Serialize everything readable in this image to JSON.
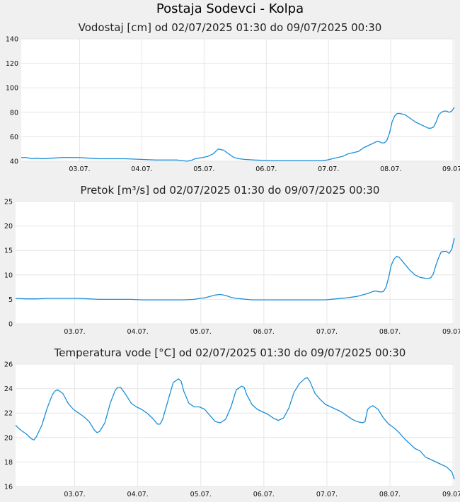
{
  "title": "Postaja Sodevci - Kolpa",
  "colors": {
    "line": "#1a8fd9",
    "grid": "#e6e6e6",
    "plot_bg": "#ffffff",
    "page_bg": "#f0f0f0"
  },
  "chart_data": [
    {
      "type": "line",
      "title": "Vodostaj [cm] od 02/07/2025 01:30 do 09/07/2025 00:30",
      "x_range": [
        0,
        167
      ],
      "x_ticks": [
        {
          "label": "03.07.",
          "x": 22.5
        },
        {
          "label": "04.07.",
          "x": 46.5
        },
        {
          "label": "05.07.",
          "x": 70.5
        },
        {
          "label": "06.07.",
          "x": 94.5
        },
        {
          "label": "07.07.",
          "x": 118.5
        },
        {
          "label": "08.07.",
          "x": 142.5
        },
        {
          "label": "09.07.",
          "x": 166.5
        }
      ],
      "ylim": [
        40,
        140
      ],
      "y_ticks": [
        40,
        60,
        80,
        100,
        120,
        140
      ],
      "grid": true,
      "series": [
        {
          "x": [
            0,
            2,
            4,
            6,
            8,
            12,
            16,
            20,
            22,
            26,
            30,
            36,
            40,
            46,
            52,
            56,
            60,
            62,
            64,
            66,
            67,
            70,
            72,
            74,
            76,
            78,
            80,
            82,
            84,
            86,
            90,
            96,
            100,
            104,
            110,
            116,
            118,
            120,
            122,
            124,
            126,
            128,
            130,
            132,
            134,
            136,
            137,
            138,
            139,
            140,
            141,
            142,
            143,
            144,
            145,
            146,
            148,
            150,
            152,
            154,
            156,
            157,
            158,
            159,
            160,
            161,
            162,
            163,
            164,
            165,
            166,
            167
          ],
          "values": [
            43,
            43,
            42,
            42.5,
            42,
            42.5,
            43,
            43,
            43,
            42.5,
            42,
            42,
            42,
            41.5,
            41,
            41,
            41,
            40.5,
            40,
            41,
            42,
            43,
            44,
            46,
            50,
            49,
            46,
            43,
            42,
            41.5,
            41,
            40.5,
            40.5,
            40.5,
            40.5,
            40.5,
            41,
            42,
            43,
            44,
            46,
            47,
            48,
            51,
            53,
            55,
            56,
            56,
            55,
            55,
            57,
            63,
            72,
            77,
            79,
            79,
            78,
            75,
            72,
            70,
            68,
            67,
            67,
            68,
            72,
            78,
            80,
            81,
            81,
            80,
            81,
            84
          ]
        }
      ]
    },
    {
      "type": "line",
      "title": "Pretok [m³/s] od 02/07/2025 01:30 do 09/07/2025 00:30",
      "x_range": [
        0,
        167
      ],
      "x_ticks": [
        {
          "label": "03.07.",
          "x": 22.5
        },
        {
          "label": "04.07.",
          "x": 46.5
        },
        {
          "label": "05.07.",
          "x": 70.5
        },
        {
          "label": "06.07.",
          "x": 94.5
        },
        {
          "label": "07.07.",
          "x": 118.5
        },
        {
          "label": "08.07.",
          "x": 142.5
        },
        {
          "label": "09.07.",
          "x": 166.5
        }
      ],
      "ylim": [
        0,
        25
      ],
      "y_ticks": [
        0,
        5,
        10,
        15,
        20,
        25
      ],
      "grid": true,
      "series": [
        {
          "x": [
            0,
            4,
            8,
            12,
            16,
            20,
            24,
            28,
            32,
            36,
            40,
            44,
            48,
            52,
            56,
            60,
            64,
            68,
            70,
            72,
            74,
            76,
            78,
            80,
            82,
            84,
            86,
            88,
            90,
            94,
            100,
            106,
            112,
            118,
            122,
            126,
            130,
            134,
            136,
            137,
            138,
            139,
            140,
            141,
            142,
            143,
            144,
            145,
            146,
            148,
            150,
            152,
            154,
            156,
            157,
            158,
            159,
            160,
            161,
            162,
            163,
            164,
            165,
            166,
            167
          ],
          "values": [
            5.2,
            5.1,
            5.1,
            5.2,
            5.2,
            5.2,
            5.2,
            5.1,
            5.0,
            5.0,
            5.0,
            5.0,
            4.9,
            4.9,
            4.9,
            4.9,
            4.9,
            5.0,
            5.2,
            5.3,
            5.6,
            5.9,
            6.0,
            5.8,
            5.4,
            5.2,
            5.1,
            5.0,
            4.9,
            4.9,
            4.9,
            4.9,
            4.9,
            4.9,
            5.1,
            5.3,
            5.6,
            6.2,
            6.6,
            6.7,
            6.6,
            6.5,
            6.6,
            7.5,
            9.5,
            12.0,
            13.2,
            13.8,
            13.6,
            12.3,
            11.0,
            10.0,
            9.5,
            9.3,
            9.3,
            9.4,
            10.2,
            12.0,
            13.5,
            14.7,
            14.8,
            14.8,
            14.4,
            15.2,
            17.5
          ]
        }
      ]
    },
    {
      "type": "line",
      "title": "Temperatura vode [°C] od 02/07/2025 01:30 do 09/07/2025 00:30",
      "x_range": [
        0,
        167
      ],
      "x_ticks": [
        {
          "label": "03.07.",
          "x": 22.5
        },
        {
          "label": "04.07.",
          "x": 46.5
        },
        {
          "label": "05.07.",
          "x": 70.5
        },
        {
          "label": "06.07.",
          "x": 94.5
        },
        {
          "label": "07.07.",
          "x": 118.5
        },
        {
          "label": "08.07.",
          "x": 142.5
        },
        {
          "label": "09.07.",
          "x": 166.5
        }
      ],
      "ylim": [
        16,
        26
      ],
      "y_ticks": [
        16,
        18,
        20,
        22,
        24,
        26
      ],
      "grid": true,
      "series": [
        {
          "x": [
            0,
            2,
            4,
            6,
            7,
            8,
            10,
            12,
            14,
            15,
            16,
            18,
            20,
            22,
            24,
            26,
            28,
            30,
            31,
            32,
            34,
            36,
            38,
            39,
            40,
            42,
            44,
            46,
            48,
            50,
            52,
            54,
            55,
            56,
            58,
            60,
            62,
            63,
            64,
            66,
            68,
            70,
            72,
            74,
            76,
            78,
            80,
            82,
            84,
            86,
            87,
            88,
            90,
            92,
            94,
            96,
            98,
            100,
            102,
            104,
            106,
            108,
            110,
            111,
            112,
            114,
            116,
            118,
            120,
            122,
            124,
            126,
            128,
            130,
            132,
            133,
            134,
            135,
            136,
            138,
            140,
            142,
            144,
            146,
            148,
            150,
            152,
            154,
            156,
            158,
            160,
            162,
            164,
            166,
            167
          ],
          "values": [
            21.0,
            20.6,
            20.3,
            19.9,
            19.8,
            20.1,
            21.0,
            22.4,
            23.5,
            23.8,
            23.9,
            23.6,
            22.8,
            22.3,
            22.0,
            21.7,
            21.3,
            20.6,
            20.4,
            20.5,
            21.2,
            22.8,
            23.9,
            24.1,
            24.1,
            23.5,
            22.8,
            22.5,
            22.3,
            22.0,
            21.6,
            21.1,
            21.1,
            21.5,
            23.0,
            24.5,
            24.8,
            24.6,
            23.8,
            22.8,
            22.5,
            22.5,
            22.3,
            21.8,
            21.3,
            21.2,
            21.5,
            22.5,
            23.9,
            24.2,
            24.1,
            23.5,
            22.7,
            22.3,
            22.1,
            21.9,
            21.6,
            21.4,
            21.6,
            22.4,
            23.7,
            24.4,
            24.8,
            24.9,
            24.6,
            23.6,
            23.1,
            22.7,
            22.5,
            22.3,
            22.1,
            21.8,
            21.5,
            21.3,
            21.2,
            21.3,
            22.3,
            22.5,
            22.6,
            22.3,
            21.6,
            21.1,
            20.8,
            20.4,
            19.9,
            19.5,
            19.1,
            18.9,
            18.4,
            18.2,
            18.0,
            17.8,
            17.6,
            17.2,
            16.6
          ]
        }
      ]
    }
  ]
}
